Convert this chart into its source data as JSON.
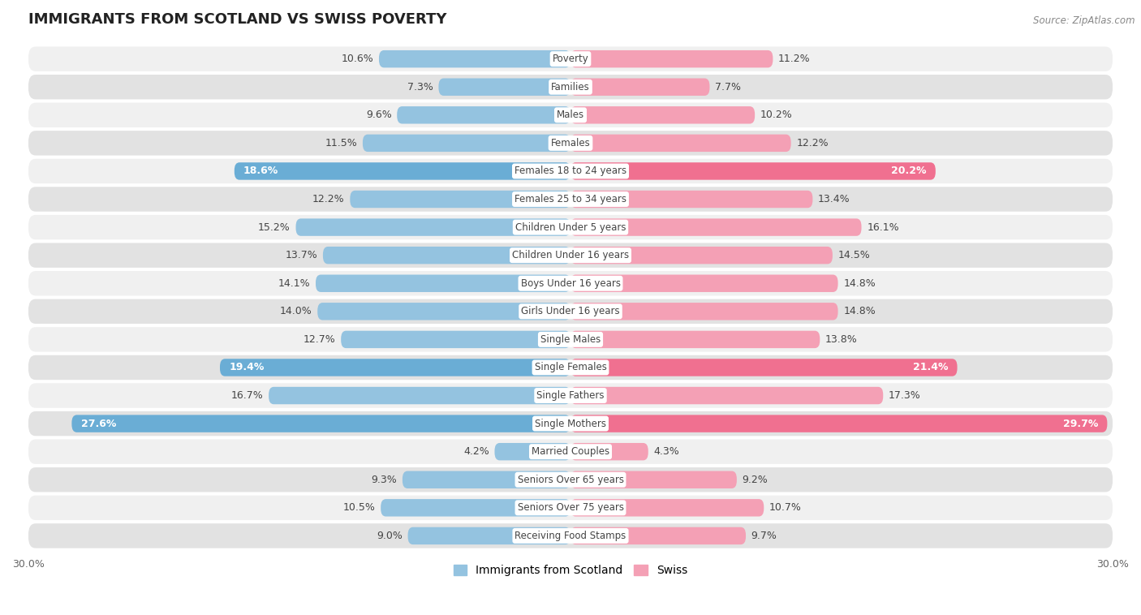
{
  "title": "IMMIGRANTS FROM SCOTLAND VS SWISS POVERTY",
  "source": "Source: ZipAtlas.com",
  "categories": [
    "Poverty",
    "Families",
    "Males",
    "Females",
    "Females 18 to 24 years",
    "Females 25 to 34 years",
    "Children Under 5 years",
    "Children Under 16 years",
    "Boys Under 16 years",
    "Girls Under 16 years",
    "Single Males",
    "Single Females",
    "Single Fathers",
    "Single Mothers",
    "Married Couples",
    "Seniors Over 65 years",
    "Seniors Over 75 years",
    "Receiving Food Stamps"
  ],
  "scotland_values": [
    10.6,
    7.3,
    9.6,
    11.5,
    18.6,
    12.2,
    15.2,
    13.7,
    14.1,
    14.0,
    12.7,
    19.4,
    16.7,
    27.6,
    4.2,
    9.3,
    10.5,
    9.0
  ],
  "swiss_values": [
    11.2,
    7.7,
    10.2,
    12.2,
    20.2,
    13.4,
    16.1,
    14.5,
    14.8,
    14.8,
    13.8,
    21.4,
    17.3,
    29.7,
    4.3,
    9.2,
    10.7,
    9.7
  ],
  "scotland_color": "#94c3e0",
  "swiss_color": "#f4a0b5",
  "scotland_highlight_color": "#6aadd5",
  "swiss_highlight_color": "#f07090",
  "highlight_rows": [
    4,
    11,
    13
  ],
  "xlim": 30.0,
  "bar_height": 0.62,
  "row_bg_light": "#f0f0f0",
  "row_bg_dark": "#e2e2e2",
  "label_bg": "#ffffff",
  "legend_labels": [
    "Immigrants from Scotland",
    "Swiss"
  ]
}
